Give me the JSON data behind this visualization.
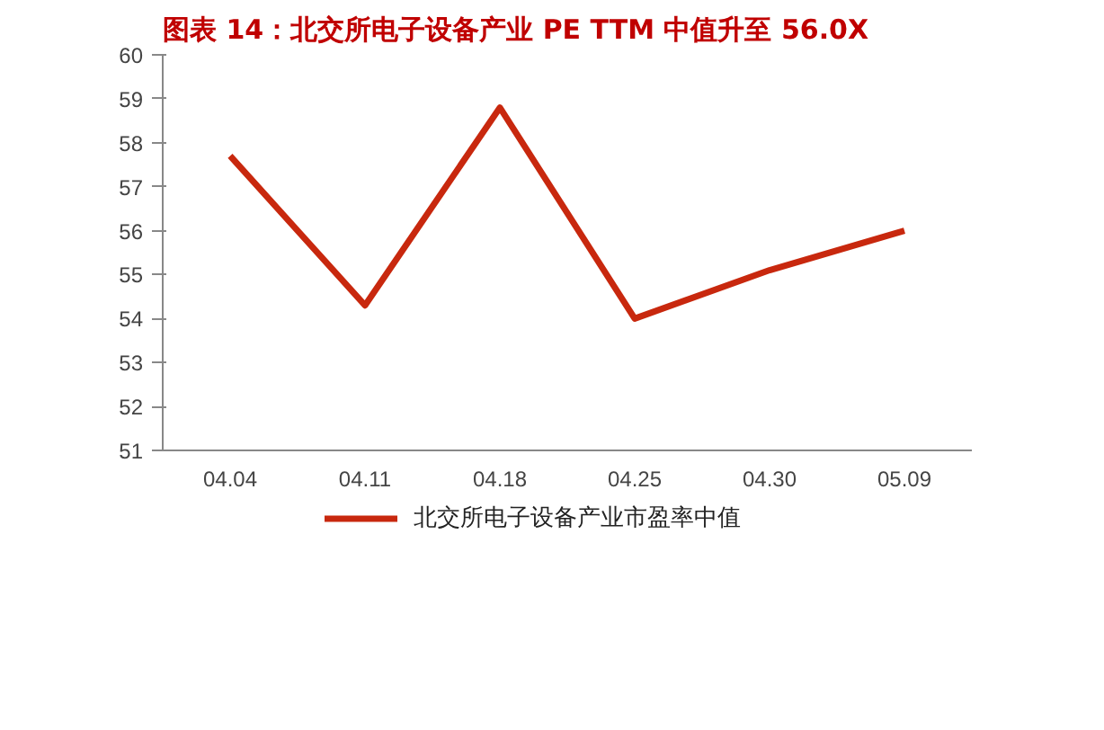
{
  "chart_data": {
    "type": "line",
    "title": "图表 14：北交所电子设备产业 PE TTM 中值升至 56.0X",
    "categories": [
      "04.04",
      "04.11",
      "04.18",
      "04.25",
      "04.30",
      "05.09"
    ],
    "series": [
      {
        "name": "北交所电子设备产业市盈率中值",
        "color": "#c8280e",
        "values": [
          57.7,
          54.3,
          58.8,
          54.0,
          55.1,
          56.0
        ]
      }
    ],
    "ylim": [
      51,
      60
    ],
    "yticks": [
      51,
      52,
      53,
      54,
      55,
      56,
      57,
      58,
      59,
      60
    ],
    "grid": false,
    "legend": "bottom",
    "marker": "none",
    "line_style": "solid"
  }
}
